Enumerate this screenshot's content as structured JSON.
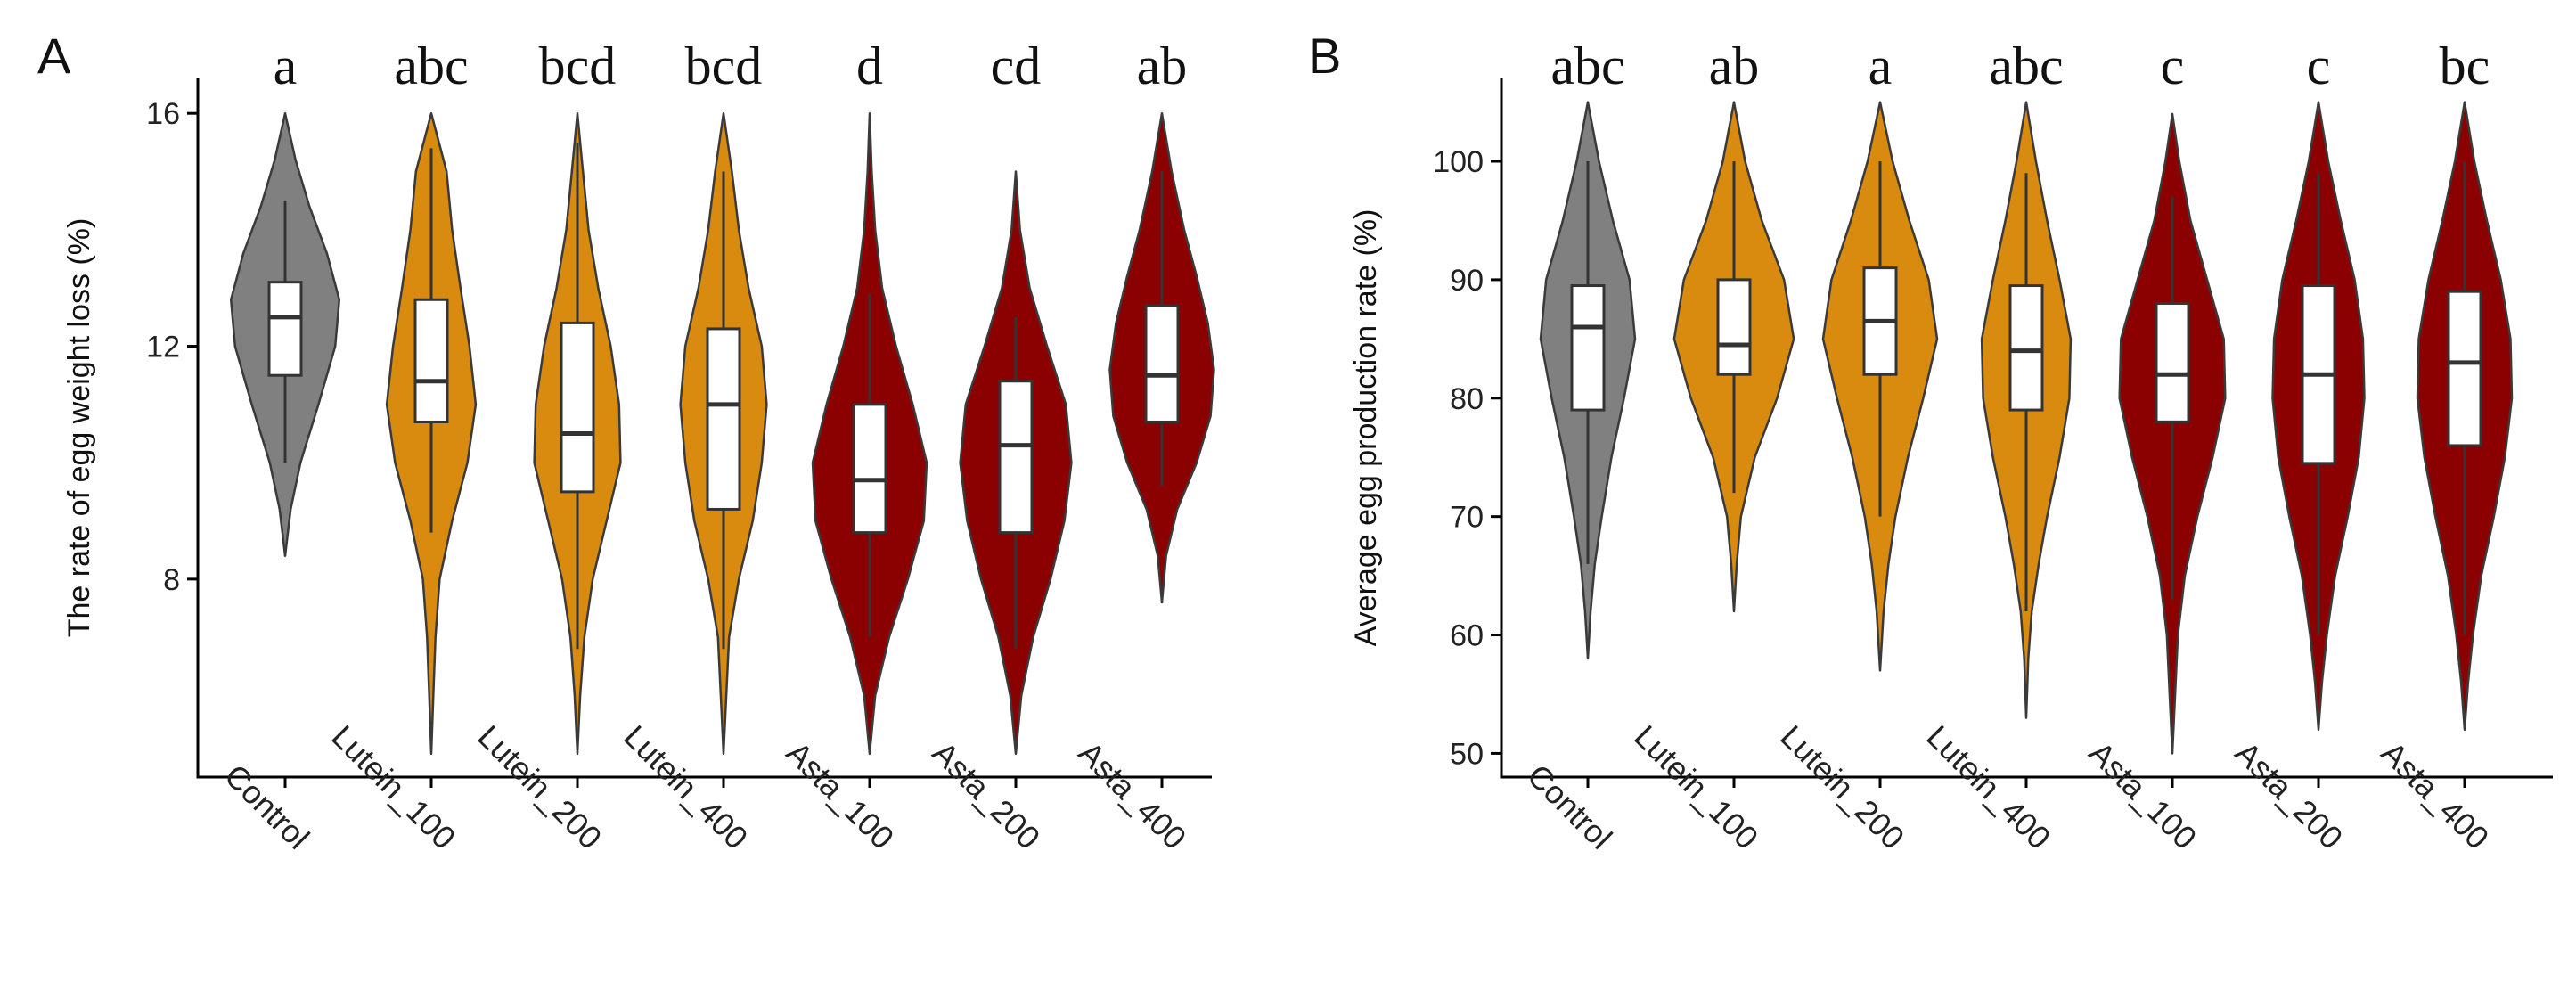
{
  "chart_data": [
    {
      "type": "violin",
      "panel_label": "A",
      "ylabel": "The rate of egg weight loss (%)",
      "xlabel": "",
      "ylim": [
        4.6,
        16.6
      ],
      "yticks": [
        8,
        12,
        16
      ],
      "categories": [
        "Control",
        "Lutein_100",
        "Lutein_200",
        "Lutein_400",
        "Asta_100",
        "Asta_200",
        "Asta_400"
      ],
      "significance_letters": [
        "a",
        "abc",
        "bcd",
        "bcd",
        "d",
        "cd",
        "ab"
      ],
      "fill_colors": [
        "#808080",
        "#D98B10",
        "#D98B10",
        "#D98B10",
        "#8B0000",
        "#8B0000",
        "#8B0000"
      ],
      "groups": [
        {
          "min": 8.4,
          "max": 16.0,
          "q1": 11.5,
          "median": 12.5,
          "q3": 13.1,
          "whisker_low": 10.0,
          "whisker_high": 14.5,
          "density": [
            [
              8.4,
              0.0
            ],
            [
              9.2,
              0.08
            ],
            [
              10.0,
              0.22
            ],
            [
              11.0,
              0.48
            ],
            [
              12.0,
              0.72
            ],
            [
              12.8,
              0.78
            ],
            [
              13.6,
              0.6
            ],
            [
              14.4,
              0.35
            ],
            [
              15.2,
              0.15
            ],
            [
              16.0,
              0.0
            ]
          ]
        },
        {
          "min": 5.0,
          "max": 16.0,
          "q1": 10.7,
          "median": 11.4,
          "q3": 12.8,
          "whisker_low": 8.8,
          "whisker_high": 15.4,
          "density": [
            [
              5.0,
              0.0
            ],
            [
              6.0,
              0.03
            ],
            [
              7.0,
              0.06
            ],
            [
              8.0,
              0.12
            ],
            [
              9.0,
              0.3
            ],
            [
              10.0,
              0.52
            ],
            [
              11.0,
              0.64
            ],
            [
              12.0,
              0.55
            ],
            [
              13.0,
              0.42
            ],
            [
              14.0,
              0.3
            ],
            [
              15.0,
              0.22
            ],
            [
              16.0,
              0.0
            ]
          ]
        },
        {
          "min": 5.0,
          "max": 16.0,
          "q1": 9.5,
          "median": 10.5,
          "q3": 12.4,
          "whisker_low": 6.8,
          "whisker_high": 15.5,
          "density": [
            [
              5.0,
              0.0
            ],
            [
              6.0,
              0.04
            ],
            [
              7.0,
              0.1
            ],
            [
              8.0,
              0.22
            ],
            [
              9.0,
              0.42
            ],
            [
              10.0,
              0.62
            ],
            [
              11.0,
              0.6
            ],
            [
              12.0,
              0.48
            ],
            [
              13.0,
              0.3
            ],
            [
              14.0,
              0.16
            ],
            [
              15.0,
              0.08
            ],
            [
              16.0,
              0.0
            ]
          ]
        },
        {
          "min": 5.0,
          "max": 16.0,
          "q1": 9.2,
          "median": 11.0,
          "q3": 12.3,
          "whisker_low": 6.8,
          "whisker_high": 15.0,
          "density": [
            [
              5.0,
              0.0
            ],
            [
              6.0,
              0.04
            ],
            [
              7.0,
              0.08
            ],
            [
              8.0,
              0.22
            ],
            [
              9.0,
              0.42
            ],
            [
              10.0,
              0.55
            ],
            [
              11.0,
              0.62
            ],
            [
              12.0,
              0.55
            ],
            [
              13.0,
              0.36
            ],
            [
              14.0,
              0.22
            ],
            [
              15.0,
              0.12
            ],
            [
              16.0,
              0.0
            ]
          ]
        },
        {
          "min": 5.0,
          "max": 16.0,
          "q1": 8.8,
          "median": 9.7,
          "q3": 11.0,
          "whisker_low": 7.0,
          "whisker_high": 12.9,
          "density": [
            [
              5.0,
              0.0
            ],
            [
              6.0,
              0.08
            ],
            [
              7.0,
              0.28
            ],
            [
              8.0,
              0.55
            ],
            [
              9.0,
              0.78
            ],
            [
              10.0,
              0.82
            ],
            [
              11.0,
              0.62
            ],
            [
              12.0,
              0.38
            ],
            [
              13.0,
              0.18
            ],
            [
              14.0,
              0.08
            ],
            [
              15.0,
              0.03
            ],
            [
              16.0,
              0.0
            ]
          ]
        },
        {
          "min": 5.0,
          "max": 15.0,
          "q1": 8.8,
          "median": 10.3,
          "q3": 11.4,
          "whisker_low": 6.8,
          "whisker_high": 12.5,
          "density": [
            [
              5.0,
              0.0
            ],
            [
              6.0,
              0.08
            ],
            [
              7.0,
              0.25
            ],
            [
              8.0,
              0.5
            ],
            [
              9.0,
              0.7
            ],
            [
              10.0,
              0.8
            ],
            [
              11.0,
              0.72
            ],
            [
              12.0,
              0.45
            ],
            [
              13.0,
              0.2
            ],
            [
              14.0,
              0.06
            ],
            [
              15.0,
              0.0
            ]
          ]
        },
        {
          "min": 7.6,
          "max": 16.0,
          "q1": 10.7,
          "median": 11.5,
          "q3": 12.7,
          "whisker_low": 9.6,
          "whisker_high": 15.0,
          "density": [
            [
              7.6,
              0.0
            ],
            [
              8.4,
              0.06
            ],
            [
              9.2,
              0.22
            ],
            [
              10.0,
              0.5
            ],
            [
              10.8,
              0.7
            ],
            [
              11.6,
              0.75
            ],
            [
              12.4,
              0.66
            ],
            [
              13.2,
              0.5
            ],
            [
              14.0,
              0.32
            ],
            [
              15.0,
              0.14
            ],
            [
              16.0,
              0.0
            ]
          ]
        }
      ]
    },
    {
      "type": "violin",
      "panel_label": "B",
      "ylabel": "Average egg production rate (%)",
      "xlabel": "",
      "ylim": [
        48,
        107
      ],
      "yticks": [
        50,
        60,
        70,
        80,
        90,
        100
      ],
      "categories": [
        "Control",
        "Lutein_100",
        "Lutein_200",
        "Lutein_400",
        "Asta_100",
        "Asta_200",
        "Asta_400"
      ],
      "significance_letters": [
        "abc",
        "ab",
        "a",
        "abc",
        "c",
        "c",
        "bc"
      ],
      "fill_colors": [
        "#808080",
        "#D98B10",
        "#D98B10",
        "#D98B10",
        "#8B0000",
        "#8B0000",
        "#8B0000"
      ],
      "groups": [
        {
          "min": 58,
          "max": 105,
          "q1": 79,
          "median": 86,
          "q3": 89.5,
          "whisker_low": 66,
          "whisker_high": 100,
          "density": [
            [
              58,
              0.0
            ],
            [
              62,
              0.04
            ],
            [
              66,
              0.1
            ],
            [
              70,
              0.2
            ],
            [
              75,
              0.34
            ],
            [
              80,
              0.52
            ],
            [
              85,
              0.68
            ],
            [
              90,
              0.6
            ],
            [
              95,
              0.36
            ],
            [
              100,
              0.16
            ],
            [
              105,
              0.0
            ]
          ]
        },
        {
          "min": 62,
          "max": 105,
          "q1": 82,
          "median": 84.5,
          "q3": 90,
          "whisker_low": 72,
          "whisker_high": 100,
          "density": [
            [
              62,
              0.0
            ],
            [
              66,
              0.04
            ],
            [
              70,
              0.1
            ],
            [
              75,
              0.3
            ],
            [
              80,
              0.62
            ],
            [
              85,
              0.86
            ],
            [
              90,
              0.72
            ],
            [
              95,
              0.4
            ],
            [
              100,
              0.16
            ],
            [
              105,
              0.0
            ]
          ]
        },
        {
          "min": 57,
          "max": 105,
          "q1": 82,
          "median": 86.5,
          "q3": 91,
          "whisker_low": 70,
          "whisker_high": 100,
          "density": [
            [
              57,
              0.0
            ],
            [
              62,
              0.05
            ],
            [
              66,
              0.12
            ],
            [
              70,
              0.22
            ],
            [
              75,
              0.4
            ],
            [
              80,
              0.62
            ],
            [
              85,
              0.82
            ],
            [
              90,
              0.7
            ],
            [
              95,
              0.42
            ],
            [
              100,
              0.18
            ],
            [
              105,
              0.0
            ]
          ]
        },
        {
          "min": 53,
          "max": 105,
          "q1": 79,
          "median": 84,
          "q3": 89.5,
          "whisker_low": 62,
          "whisker_high": 99,
          "density": [
            [
              53,
              0.0
            ],
            [
              58,
              0.03
            ],
            [
              62,
              0.08
            ],
            [
              66,
              0.18
            ],
            [
              70,
              0.3
            ],
            [
              75,
              0.48
            ],
            [
              80,
              0.62
            ],
            [
              85,
              0.64
            ],
            [
              90,
              0.48
            ],
            [
              95,
              0.3
            ],
            [
              100,
              0.14
            ],
            [
              105,
              0.0
            ]
          ]
        },
        {
          "min": 50,
          "max": 104,
          "q1": 78,
          "median": 82,
          "q3": 88,
          "whisker_low": 63,
          "whisker_high": 97,
          "density": [
            [
              50,
              0.0
            ],
            [
              55,
              0.04
            ],
            [
              60,
              0.08
            ],
            [
              65,
              0.18
            ],
            [
              70,
              0.36
            ],
            [
              75,
              0.58
            ],
            [
              80,
              0.76
            ],
            [
              85,
              0.74
            ],
            [
              90,
              0.5
            ],
            [
              95,
              0.26
            ],
            [
              100,
              0.1
            ],
            [
              104,
              0.0
            ]
          ]
        },
        {
          "min": 52,
          "max": 105,
          "q1": 74.5,
          "median": 82,
          "q3": 89.5,
          "whisker_low": 60,
          "whisker_high": 99,
          "density": [
            [
              52,
              0.0
            ],
            [
              56,
              0.05
            ],
            [
              60,
              0.12
            ],
            [
              65,
              0.24
            ],
            [
              70,
              0.42
            ],
            [
              75,
              0.58
            ],
            [
              80,
              0.66
            ],
            [
              85,
              0.64
            ],
            [
              90,
              0.52
            ],
            [
              95,
              0.32
            ],
            [
              100,
              0.14
            ],
            [
              105,
              0.0
            ]
          ]
        },
        {
          "min": 52,
          "max": 105,
          "q1": 76,
          "median": 83,
          "q3": 89,
          "whisker_low": 60,
          "whisker_high": 100,
          "density": [
            [
              52,
              0.0
            ],
            [
              56,
              0.05
            ],
            [
              60,
              0.12
            ],
            [
              65,
              0.24
            ],
            [
              70,
              0.42
            ],
            [
              75,
              0.58
            ],
            [
              80,
              0.68
            ],
            [
              85,
              0.66
            ],
            [
              90,
              0.52
            ],
            [
              95,
              0.32
            ],
            [
              100,
              0.14
            ],
            [
              105,
              0.0
            ]
          ]
        }
      ]
    }
  ]
}
